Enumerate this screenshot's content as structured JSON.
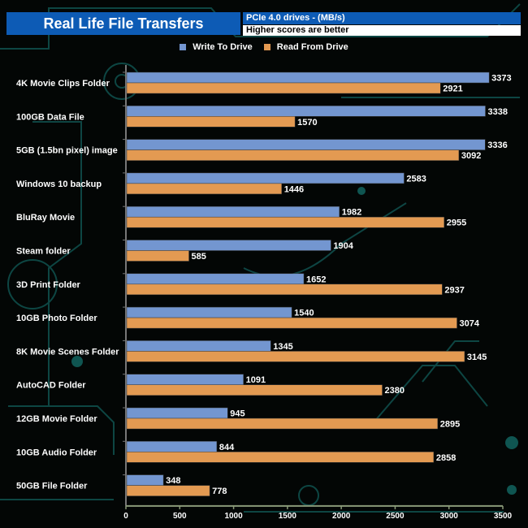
{
  "header": {
    "title": "Real Life File Transfers",
    "subtitle": "PCIe 4.0 drives - (MB/s)",
    "note": "Higher scores are better"
  },
  "colors": {
    "write": "#7396d0",
    "read": "#e39a52",
    "title_bg": "#0d5bb5",
    "axis": "#8a9a78"
  },
  "chart_data": {
    "type": "bar",
    "orientation": "horizontal",
    "title": "Real Life File Transfers",
    "subtitle": "PCIe 4.0 drives - (MB/s)",
    "xlabel": "",
    "ylabel": "",
    "xlim": [
      0,
      3500
    ],
    "xticks": [
      "0",
      "500",
      "1000",
      "1500",
      "2000",
      "2500",
      "3000",
      "3500"
    ],
    "legend_position": "top-center",
    "categories": [
      "4K Movie Clips Folder",
      "100GB Data File",
      "5GB (1.5bn pixel) image",
      "Windows 10 backup",
      "BluRay Movie",
      "Steam folder",
      "3D Print Folder",
      "10GB Photo Folder",
      "8K Movie Scenes Folder",
      "AutoCAD Folder",
      "12GB Movie Folder",
      "10GB Audio Folder",
      "50GB File Folder"
    ],
    "series": [
      {
        "name": "Write To  Drive",
        "values": [
          3373,
          3338,
          3336,
          2583,
          1982,
          1904,
          1652,
          1540,
          1345,
          1091,
          945,
          844,
          348
        ]
      },
      {
        "name": "Read From  Drive",
        "values": [
          2921,
          1570,
          3092,
          1446,
          2955,
          585,
          2937,
          3074,
          3145,
          2380,
          2895,
          2858,
          778
        ]
      }
    ]
  }
}
